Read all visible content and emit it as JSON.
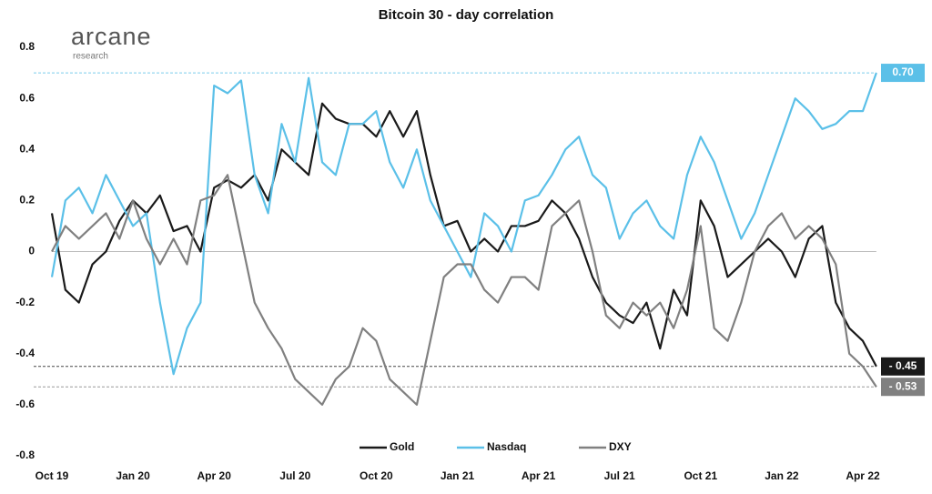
{
  "chart_data": {
    "type": "line",
    "title": "Bitcoin 30 - day correlation",
    "logo": {
      "name": "arcane",
      "sub": "research"
    },
    "categories": [
      "Oct 19",
      null,
      null,
      null,
      null,
      null,
      "Jan 20",
      null,
      null,
      null,
      null,
      null,
      "Apr 20",
      null,
      null,
      null,
      null,
      null,
      "Jul 20",
      null,
      null,
      null,
      null,
      null,
      "Oct 20",
      null,
      null,
      null,
      null,
      null,
      "Jan 21",
      null,
      null,
      null,
      null,
      null,
      "Apr 21",
      null,
      null,
      null,
      null,
      null,
      "Jul 21",
      null,
      null,
      null,
      null,
      null,
      "Oct 21",
      null,
      null,
      null,
      null,
      null,
      "Jan 22",
      null,
      null,
      null,
      null,
      null,
      "Apr 22",
      null
    ],
    "ylim": [
      -0.8,
      0.8
    ],
    "yticks": [
      0.8,
      0.6,
      0.4,
      0.2,
      0,
      -0.2,
      -0.4,
      -0.6,
      -0.8
    ],
    "zero_line": true,
    "legend": "bottom",
    "series": [
      {
        "name": "Gold",
        "color": "#1a1a1a",
        "values": [
          0.15,
          -0.15,
          -0.2,
          -0.05,
          0.0,
          0.12,
          0.2,
          0.15,
          0.22,
          0.08,
          0.1,
          0.0,
          0.25,
          0.28,
          0.25,
          0.3,
          0.2,
          0.4,
          0.35,
          0.3,
          0.58,
          0.52,
          0.5,
          0.5,
          0.45,
          0.55,
          0.45,
          0.55,
          0.3,
          0.1,
          0.12,
          0.0,
          0.05,
          0.0,
          0.1,
          0.1,
          0.12,
          0.2,
          0.15,
          0.05,
          -0.1,
          -0.2,
          -0.25,
          -0.28,
          -0.2,
          -0.38,
          -0.15,
          -0.25,
          0.2,
          0.1,
          -0.1,
          -0.05,
          0.0,
          0.05,
          0.0,
          -0.1,
          0.05,
          0.1,
          -0.2,
          -0.3,
          -0.35,
          -0.45
        ],
        "value_labels": [
          null,
          null,
          null,
          null,
          null,
          null,
          null,
          null,
          null,
          null,
          null,
          null,
          null,
          null,
          null,
          null,
          null,
          null,
          null,
          null,
          null,
          null,
          null,
          null,
          null,
          null,
          null,
          null,
          null,
          null,
          null,
          null,
          null,
          null,
          null,
          null,
          null,
          null,
          null,
          null,
          null,
          null,
          null,
          null,
          null,
          null,
          null,
          null,
          null,
          null,
          null,
          null,
          null,
          null,
          null,
          null,
          null,
          null,
          null,
          null,
          null,
          "- 0.45"
        ]
      },
      {
        "name": "Nasdaq",
        "color": "#5bc0e8",
        "values": [
          -0.1,
          0.2,
          0.25,
          0.15,
          0.3,
          0.2,
          0.1,
          0.15,
          -0.2,
          -0.48,
          -0.3,
          -0.2,
          0.65,
          0.62,
          0.67,
          0.3,
          0.15,
          0.5,
          0.35,
          0.68,
          0.35,
          0.3,
          0.5,
          0.5,
          0.55,
          0.35,
          0.25,
          0.4,
          0.2,
          0.1,
          0.0,
          -0.1,
          0.15,
          0.1,
          0.0,
          0.2,
          0.22,
          0.3,
          0.4,
          0.45,
          0.3,
          0.25,
          0.05,
          0.15,
          0.2,
          0.1,
          0.05,
          0.3,
          0.45,
          0.35,
          0.2,
          0.05,
          0.15,
          0.3,
          0.45,
          0.6,
          0.55,
          0.48,
          0.5,
          0.55,
          0.55,
          0.7
        ],
        "value_labels": [
          null,
          null,
          null,
          null,
          null,
          null,
          null,
          null,
          null,
          null,
          null,
          null,
          null,
          null,
          null,
          null,
          null,
          null,
          null,
          null,
          null,
          null,
          null,
          null,
          null,
          null,
          null,
          null,
          null,
          null,
          null,
          null,
          null,
          null,
          null,
          null,
          null,
          null,
          null,
          null,
          null,
          null,
          null,
          null,
          null,
          null,
          null,
          null,
          null,
          null,
          null,
          null,
          null,
          null,
          null,
          null,
          null,
          null,
          null,
          null,
          null,
          "0.70"
        ]
      },
      {
        "name": "DXY",
        "color": "#808080",
        "values": [
          0.0,
          0.1,
          0.05,
          0.1,
          0.15,
          0.05,
          0.2,
          0.05,
          -0.05,
          0.05,
          -0.05,
          0.2,
          0.22,
          0.3,
          0.05,
          -0.2,
          -0.3,
          -0.38,
          -0.5,
          -0.55,
          -0.6,
          -0.5,
          -0.45,
          -0.3,
          -0.35,
          -0.5,
          -0.55,
          -0.6,
          -0.35,
          -0.1,
          -0.05,
          -0.05,
          -0.15,
          -0.2,
          -0.1,
          -0.1,
          -0.15,
          0.1,
          0.15,
          0.2,
          0.0,
          -0.25,
          -0.3,
          -0.2,
          -0.25,
          -0.2,
          -0.3,
          -0.15,
          0.1,
          -0.3,
          -0.35,
          -0.2,
          0.0,
          0.1,
          0.15,
          0.05,
          0.1,
          0.05,
          -0.05,
          -0.4,
          -0.45,
          -0.53
        ],
        "value_labels": [
          null,
          null,
          null,
          null,
          null,
          null,
          null,
          null,
          null,
          null,
          null,
          null,
          null,
          null,
          null,
          null,
          null,
          null,
          null,
          null,
          null,
          null,
          null,
          null,
          null,
          null,
          null,
          null,
          null,
          null,
          null,
          null,
          null,
          null,
          null,
          null,
          null,
          null,
          null,
          null,
          null,
          null,
          null,
          null,
          null,
          null,
          null,
          null,
          null,
          null,
          null,
          null,
          null,
          null,
          null,
          null,
          null,
          null,
          null,
          null,
          null,
          "- 0.53"
        ]
      }
    ]
  }
}
